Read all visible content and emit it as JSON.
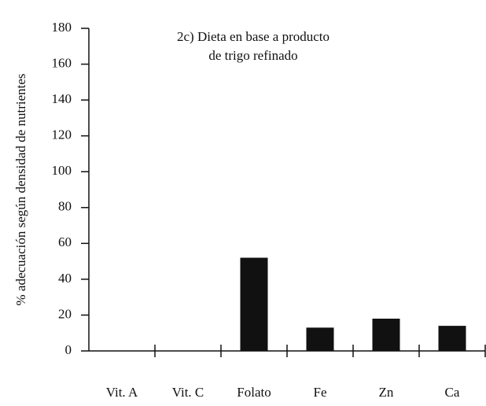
{
  "chart_data": {
    "type": "bar",
    "title": [
      "2c) Dieta en base a producto",
      "de trigo refinado"
    ],
    "y_label": "% adecuación según densidad de nutrientes",
    "categories": [
      "Vit. A",
      "Vit. C",
      "Folato",
      "Fe",
      "Zn",
      "Ca"
    ],
    "values": [
      0,
      0,
      52,
      13,
      18,
      14
    ],
    "color": "#111111",
    "ylim": [
      0,
      180
    ],
    "yticks": [
      0,
      20,
      40,
      60,
      80,
      100,
      120,
      140,
      160,
      180
    ],
    "grid": false
  }
}
